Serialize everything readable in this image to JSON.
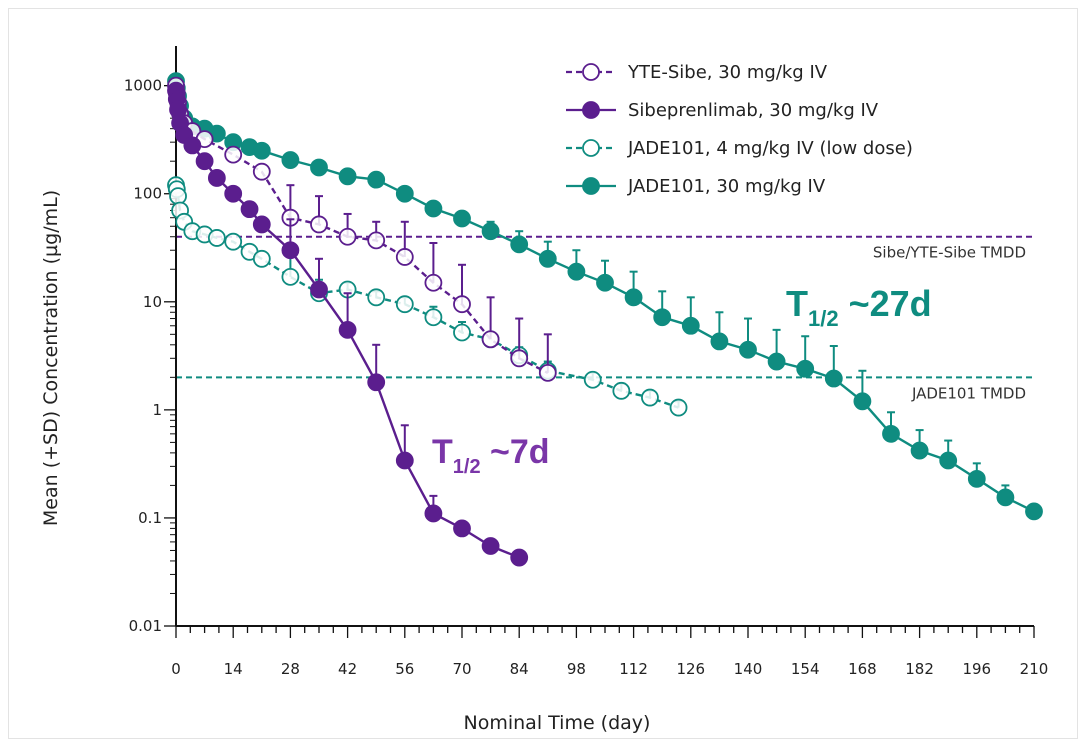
{
  "chart_data": {
    "type": "line",
    "title": "",
    "xlabel": "Nominal Time (day)",
    "ylabel": "Mean (+SD) Concentration (µg/mL)",
    "xlim": [
      0,
      210
    ],
    "ylim": [
      0.01,
      1000
    ],
    "yscale": "log",
    "x_ticks": [
      "0",
      "14",
      "28",
      "42",
      "56",
      "70",
      "84",
      "98",
      "112",
      "126",
      "140",
      "154",
      "168",
      "182",
      "196",
      "210"
    ],
    "y_ticks": [
      "0.01",
      "0.1",
      "1",
      "10",
      "100",
      "1000"
    ],
    "legend_position": "top-right",
    "colors": {
      "purple": "#5b1e8e",
      "teal": "#0f8c80"
    },
    "series": [
      {
        "name": "YTE-Sibe, 30 mg/kg IV",
        "color": "#5b1e8e",
        "marker": "open",
        "dashed": true,
        "x": [
          0,
          0.2,
          0.5,
          1,
          2,
          4,
          7,
          14,
          21,
          28,
          35,
          42,
          49,
          56,
          63,
          70,
          77,
          84,
          91
        ],
        "y": [
          1000,
          850,
          700,
          550,
          450,
          380,
          320,
          230,
          160,
          60,
          52,
          40,
          37,
          26,
          15,
          9.5,
          4.5,
          3.0,
          2.2
        ],
        "yerr_upper": [
          null,
          null,
          null,
          null,
          null,
          null,
          null,
          null,
          null,
          120,
          95,
          65,
          55,
          55,
          35,
          22,
          11,
          7,
          5
        ]
      },
      {
        "name": "Sibeprenlimab, 30 mg/kg IV",
        "color": "#5b1e8e",
        "marker": "filled",
        "dashed": false,
        "x": [
          0,
          0.2,
          0.5,
          1,
          2,
          4,
          7,
          10,
          14,
          18,
          21,
          28,
          35,
          42,
          49,
          56,
          63,
          70,
          77,
          84
        ],
        "y": [
          900,
          750,
          600,
          450,
          350,
          280,
          200,
          140,
          100,
          72,
          52,
          30,
          13,
          5.5,
          1.8,
          0.34,
          0.11,
          0.08,
          0.055,
          0.043
        ],
        "yerr_upper": [
          null,
          null,
          null,
          null,
          null,
          null,
          null,
          null,
          null,
          null,
          null,
          58,
          25,
          12,
          4,
          0.72,
          0.16,
          null,
          null,
          null
        ]
      },
      {
        "name": "JADE101, 4 mg/kg IV (low dose)",
        "color": "#0f8c80",
        "marker": "open",
        "dashed": true,
        "x": [
          0,
          0.2,
          0.5,
          1,
          2,
          4,
          7,
          10,
          14,
          18,
          21,
          28,
          35,
          42,
          49,
          56,
          63,
          70,
          77,
          84,
          91,
          102,
          109,
          116,
          123
        ],
        "y": [
          120,
          110,
          95,
          70,
          55,
          45,
          42,
          39,
          36,
          29,
          25,
          17,
          12,
          13,
          11,
          9.5,
          7.2,
          5.2,
          4.5,
          3.2,
          2.3,
          1.9,
          1.5,
          1.3,
          1.05
        ],
        "yerr_upper": [
          null,
          null,
          null,
          null,
          null,
          null,
          null,
          null,
          null,
          null,
          null,
          27,
          16,
          15,
          12.5,
          11,
          9,
          6.5,
          5.2,
          3.8,
          2.8,
          2.2,
          1.75,
          1.5,
          1.2
        ]
      },
      {
        "name": "JADE101, 30 mg/kg IV",
        "color": "#0f8c80",
        "marker": "filled",
        "dashed": false,
        "x": [
          0,
          0.2,
          0.5,
          1,
          2,
          4,
          7,
          10,
          14,
          18,
          21,
          28,
          35,
          42,
          49,
          56,
          63,
          70,
          77,
          84,
          91,
          98,
          105,
          112,
          119,
          126,
          133,
          140,
          147,
          154,
          161,
          168,
          175,
          182,
          189,
          196,
          203,
          210
        ],
        "y": [
          1100,
          950,
          800,
          650,
          500,
          420,
          400,
          360,
          300,
          270,
          250,
          205,
          175,
          145,
          135,
          100,
          73,
          59,
          45,
          34,
          25,
          19,
          15,
          11,
          7.2,
          6,
          4.3,
          3.6,
          2.8,
          2.4,
          1.95,
          1.2,
          0.6,
          0.42,
          0.34,
          0.23,
          0.155,
          0.115
        ],
        "yerr_upper": [
          null,
          null,
          null,
          null,
          null,
          null,
          null,
          null,
          null,
          null,
          null,
          null,
          null,
          null,
          null,
          null,
          null,
          null,
          55,
          45,
          36,
          30,
          24,
          19,
          12.5,
          11,
          8,
          7,
          5.5,
          4.8,
          3.9,
          2.3,
          0.95,
          0.65,
          0.52,
          0.32,
          0.2,
          null
        ]
      }
    ],
    "reference_lines": [
      {
        "y": 40,
        "label": "Sibe/YTE-Sibe TMDD",
        "color": "#5b1e8e"
      },
      {
        "y": 2,
        "label": "JADE101 TMDD",
        "color": "#0f8c80"
      }
    ],
    "annotations": [
      {
        "base": "T",
        "sub": "1/2",
        "text": " ~7d",
        "color": "#7a36a8"
      },
      {
        "base": "T",
        "sub": "1/2",
        "text": " ~27d",
        "color": "#0f8c80"
      }
    ]
  }
}
